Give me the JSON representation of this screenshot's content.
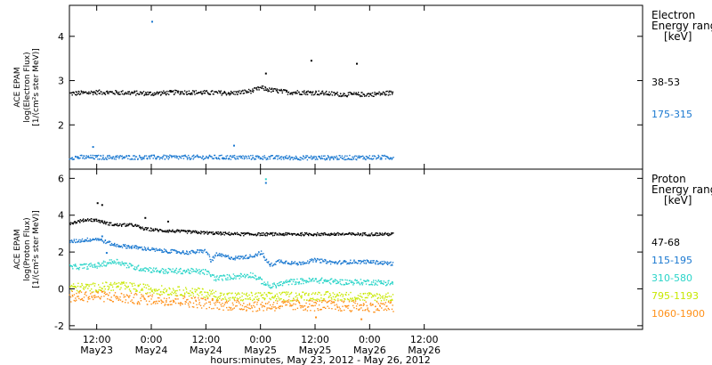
{
  "chart_data": {
    "type": "scatter",
    "x_unit": "hours since 2012-05-23 00:00",
    "xlim": [
      6,
      132
    ],
    "xticks": [
      {
        "x": 12,
        "time": "12:00",
        "date": "May23"
      },
      {
        "x": 24,
        "time": "0:00",
        "date": "May24"
      },
      {
        "x": 36,
        "time": "12:00",
        "date": "May24"
      },
      {
        "x": 48,
        "time": "0:00",
        "date": "May25"
      },
      {
        "x": 60,
        "time": "12:00",
        "date": "May25"
      },
      {
        "x": 72,
        "time": "0:00",
        "date": "May26"
      },
      {
        "x": 84,
        "time": "12:00",
        "date": "May26"
      }
    ],
    "xlabel": "hours:minutes, May 23, 2012 - May 26, 2012",
    "data_end_x": 77,
    "panels": [
      {
        "ylabel_lines": [
          "ACE EPAM",
          "log(Electron Flux)",
          "[1/(cm²s ster MeV)]"
        ],
        "ylim": [
          1,
          4.7
        ],
        "yticks": [
          2,
          3,
          4
        ],
        "legend_title": [
          "Electron",
          "Energy range",
          "[keV]"
        ],
        "series": [
          {
            "name": "38-53",
            "color": "#000000",
            "points": [
              [
                6,
                2.72
              ],
              [
                12,
                2.75
              ],
              [
                18,
                2.74
              ],
              [
                24,
                2.72
              ],
              [
                30,
                2.75
              ],
              [
                36,
                2.74
              ],
              [
                42,
                2.73
              ],
              [
                46,
                2.78
              ],
              [
                48,
                2.85
              ],
              [
                50,
                2.8
              ],
              [
                54,
                2.75
              ],
              [
                60,
                2.74
              ],
              [
                66,
                2.7
              ],
              [
                72,
                2.7
              ],
              [
                77,
                2.74
              ]
            ],
            "scatter": 0.05,
            "outliers": [
              [
                49,
                3.18
              ],
              [
                59,
                3.47
              ],
              [
                69,
                3.4
              ]
            ]
          },
          {
            "name": "175-315",
            "color": "#1a78d0",
            "points": [
              [
                6,
                1.28
              ],
              [
                20,
                1.28
              ],
              [
                40,
                1.28
              ],
              [
                60,
                1.27
              ],
              [
                77,
                1.28
              ]
            ],
            "scatter": 0.05,
            "outliers": [
              [
                11,
                1.52
              ],
              [
                24,
                4.35
              ],
              [
                42,
                1.55
              ]
            ]
          }
        ]
      },
      {
        "ylabel_lines": [
          "ACE EPAM",
          "log(Proton Flux)",
          "[1/(cm²s ster MeV)]"
        ],
        "ylim": [
          -2.2,
          6.5
        ],
        "yticks": [
          -2,
          0,
          2,
          4,
          6
        ],
        "legend_title": [
          "Proton",
          "Energy range",
          "[keV]"
        ],
        "series": [
          {
            "name": "47-68",
            "color": "#000000",
            "points": [
              [
                6,
                3.6
              ],
              [
                10,
                3.8
              ],
              [
                12,
                3.75
              ],
              [
                14,
                3.6
              ],
              [
                16,
                3.5
              ],
              [
                20,
                3.5
              ],
              [
                22,
                3.3
              ],
              [
                26,
                3.2
              ],
              [
                30,
                3.15
              ],
              [
                34,
                3.1
              ],
              [
                38,
                3.05
              ],
              [
                44,
                3.0
              ],
              [
                50,
                3.0
              ],
              [
                60,
                3.0
              ],
              [
                70,
                3.0
              ],
              [
                77,
                3.0
              ]
            ],
            "scatter": 0.08,
            "outliers": [
              [
                12,
                4.7
              ],
              [
                13,
                4.6
              ],
              [
                22.5,
                3.9
              ],
              [
                27.5,
                3.7
              ]
            ]
          },
          {
            "name": "115-195",
            "color": "#1a78d0",
            "points": [
              [
                6,
                2.6
              ],
              [
                12,
                2.75
              ],
              [
                16,
                2.4
              ],
              [
                20,
                2.3
              ],
              [
                26,
                2.1
              ],
              [
                32,
                2.0
              ],
              [
                36,
                2.1
              ],
              [
                37,
                1.5
              ],
              [
                38,
                1.9
              ],
              [
                42,
                1.7
              ],
              [
                46,
                1.8
              ],
              [
                48,
                2.0
              ],
              [
                50,
                1.3
              ],
              [
                52,
                1.55
              ],
              [
                56,
                1.4
              ],
              [
                60,
                1.6
              ],
              [
                64,
                1.45
              ],
              [
                68,
                1.5
              ],
              [
                72,
                1.5
              ],
              [
                77,
                1.4
              ]
            ],
            "scatter": 0.1,
            "outliers": [
              [
                13,
                2.9
              ],
              [
                14,
                2.0
              ],
              [
                49,
                5.8
              ]
            ]
          },
          {
            "name": "310-580",
            "color": "#2ad4c8",
            "points": [
              [
                6,
                1.2
              ],
              [
                12,
                1.3
              ],
              [
                16,
                1.55
              ],
              [
                20,
                1.2
              ],
              [
                26,
                1.0
              ],
              [
                32,
                1.0
              ],
              [
                36,
                0.95
              ],
              [
                38,
                0.6
              ],
              [
                42,
                0.7
              ],
              [
                46,
                0.8
              ],
              [
                50,
                0.15
              ],
              [
                54,
                0.4
              ],
              [
                60,
                0.5
              ],
              [
                66,
                0.4
              ],
              [
                72,
                0.4
              ],
              [
                77,
                0.35
              ]
            ],
            "scatter": 0.15,
            "outliers": [
              [
                49,
                6.0
              ]
            ]
          },
          {
            "name": "795-1193",
            "color": "#c8e800",
            "points": [
              [
                6,
                0.1
              ],
              [
                12,
                0.1
              ],
              [
                16,
                0.2
              ],
              [
                24,
                0.0
              ],
              [
                36,
                -0.2
              ],
              [
                40,
                -0.4
              ],
              [
                50,
                -0.4
              ],
              [
                60,
                -0.35
              ],
              [
                70,
                -0.4
              ],
              [
                77,
                -0.4
              ]
            ],
            "scatter": 0.25,
            "outliers": []
          },
          {
            "name": "1060-1900",
            "color": "#ff9018",
            "points": [
              [
                6,
                -0.4
              ],
              [
                12,
                -0.35
              ],
              [
                20,
                -0.5
              ],
              [
                30,
                -0.6
              ],
              [
                38,
                -0.8
              ],
              [
                46,
                -0.9
              ],
              [
                56,
                -0.85
              ],
              [
                66,
                -0.9
              ],
              [
                77,
                -0.95
              ]
            ],
            "scatter": 0.3,
            "outliers": [
              [
                70,
                -1.6
              ],
              [
                60,
                -1.5
              ]
            ]
          }
        ]
      }
    ]
  }
}
